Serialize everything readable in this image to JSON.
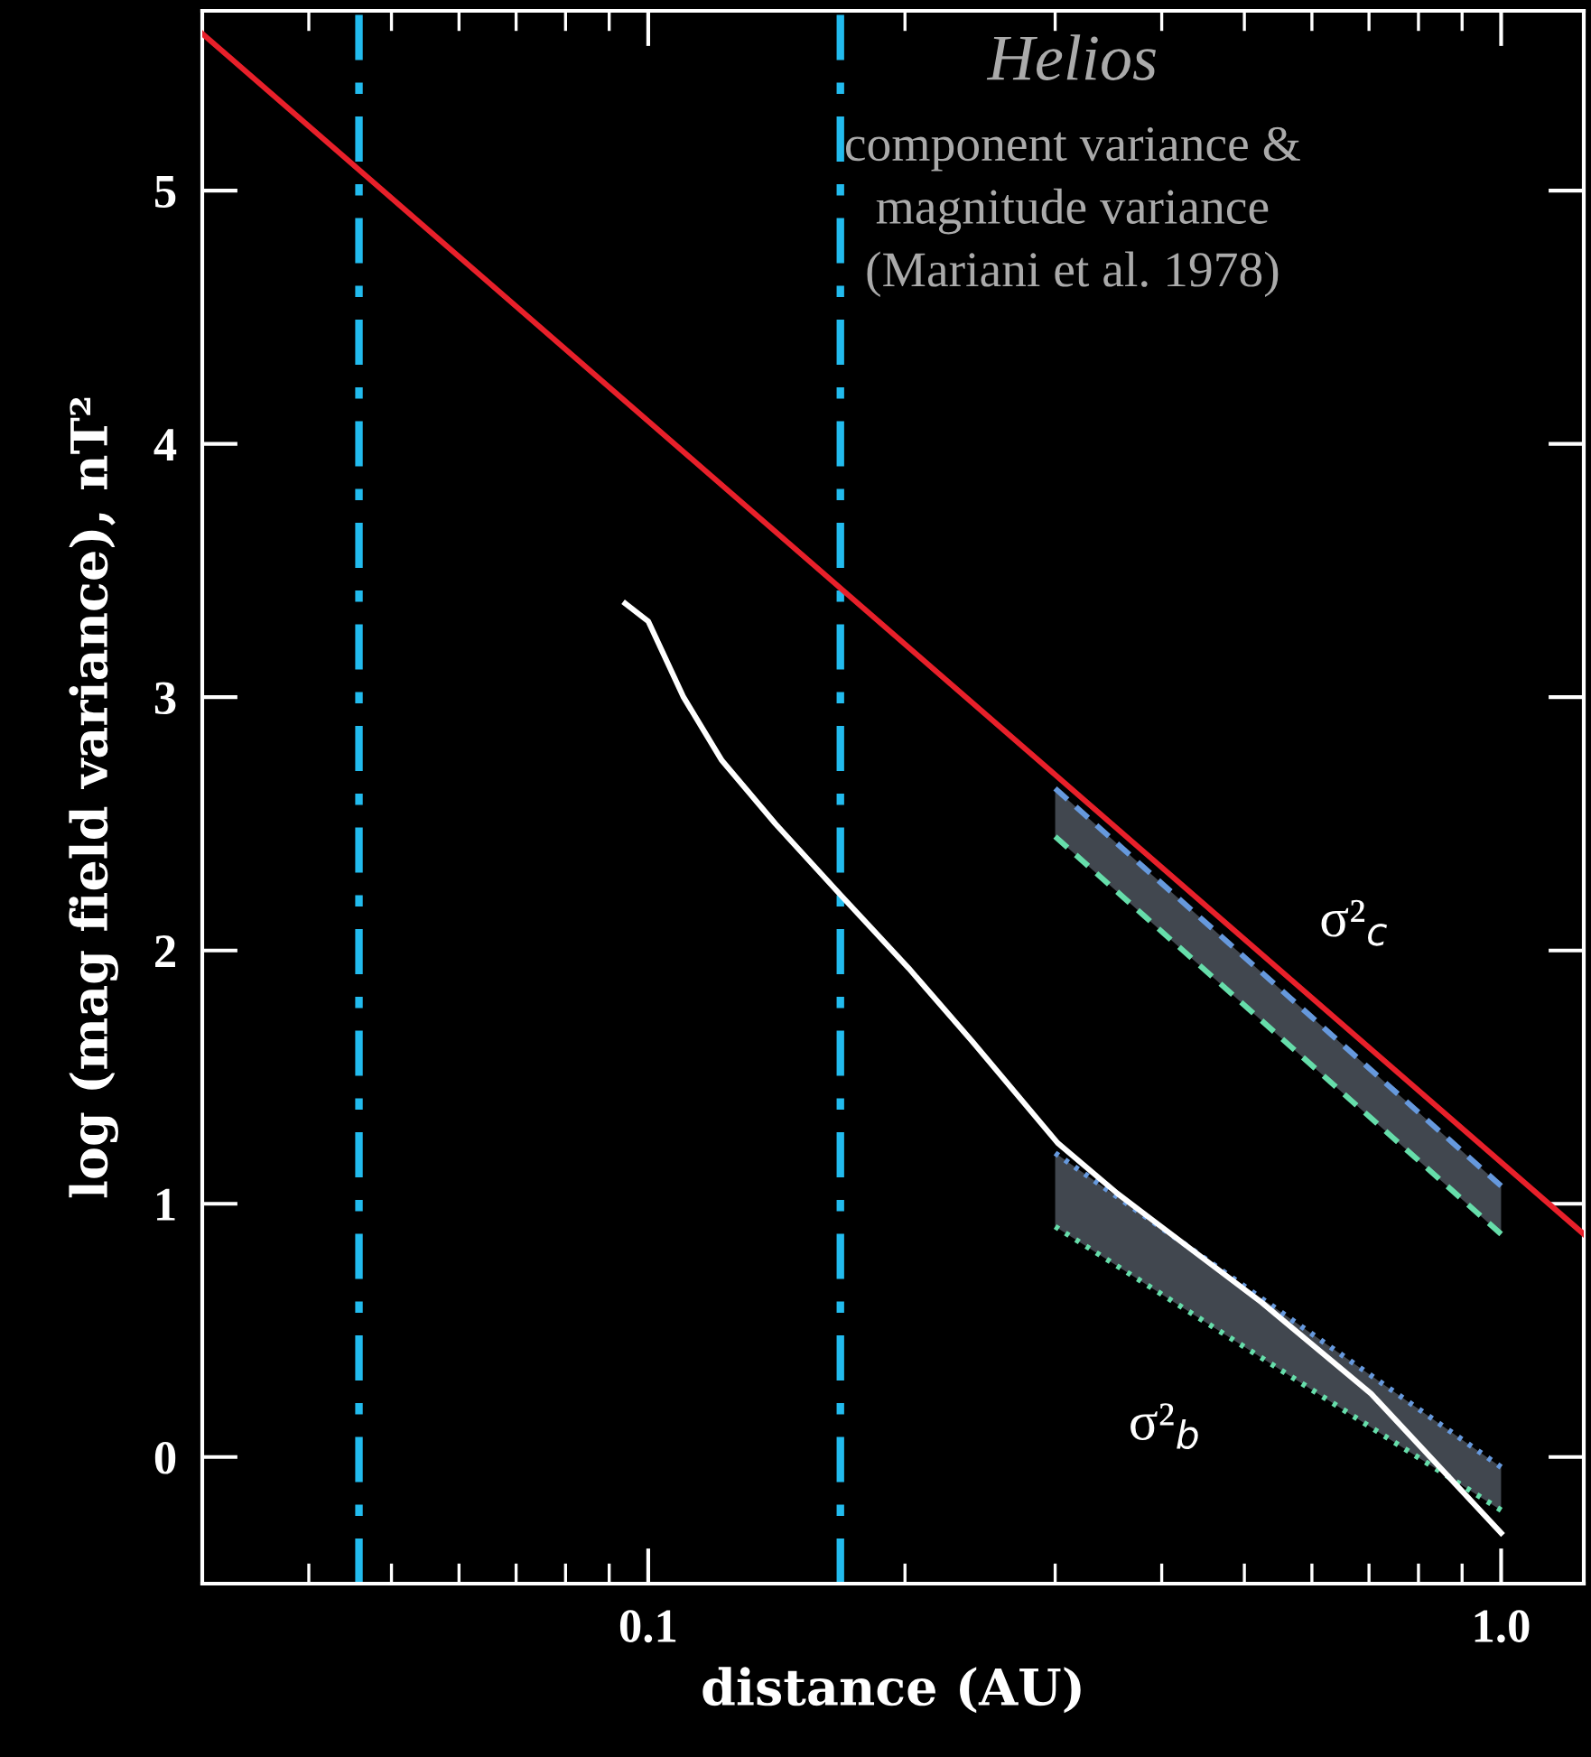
{
  "chart_data": {
    "type": "line",
    "xlabel": "distance (AU)",
    "ylabel": "log (mag field variance), nT²",
    "log": "x",
    "xlim": [
      0.03,
      1.25
    ],
    "ylim": [
      -0.5,
      5.71
    ],
    "xticks": [
      {
        "value": 0.1,
        "label": "0.1"
      },
      {
        "value": 1.0,
        "label": "1.0"
      }
    ],
    "yticks": [
      0,
      1,
      2,
      3,
      4,
      5
    ],
    "grid": false,
    "marker": "none",
    "series": [
      {
        "color": "#6699dd",
        "line_style": "dashed",
        "x": [
          0.3,
          1.0
        ],
        "values": [
          2.64,
          1.07
        ],
        "lower": [
          2.45,
          0.88
        ],
        "upper": [
          2.64,
          1.07
        ]
      },
      {
        "color": "#66ddaa",
        "line_style": "dashed",
        "x": [
          0.3,
          1.0
        ],
        "values": [
          2.45,
          0.88
        ]
      },
      {
        "color": "#6699dd",
        "line_style": "dotted",
        "x": [
          0.3,
          1.0
        ],
        "values": [
          1.2,
          -0.04
        ],
        "lower": [
          0.91,
          -0.21
        ],
        "upper": [
          1.2,
          -0.04
        ]
      },
      {
        "color": "#66ddaa",
        "line_style": "dotted",
        "x": [
          0.3,
          1.0
        ],
        "values": [
          0.91,
          -0.21
        ]
      },
      {
        "color": "#ffffff",
        "line_style": "solid",
        "x": [
          0.094,
          0.1,
          0.11,
          0.122,
          0.141,
          0.168,
          0.202,
          0.24,
          0.302,
          0.355,
          0.524,
          0.704,
          1.0
        ],
        "values": [
          3.37,
          3.3,
          3.0,
          2.75,
          2.5,
          2.22,
          1.93,
          1.64,
          1.24,
          1.04,
          0.61,
          0.25,
          -0.3
        ]
      },
      {
        "color": "#e8202a",
        "line_style": "solid",
        "x": [
          0.03,
          1.25
        ],
        "values": [
          5.62,
          0.88
        ]
      }
    ],
    "ref_lines": [
      {
        "axis": "x",
        "value": 0.0458,
        "color": "#22bbee",
        "line_style": "dashdot"
      },
      {
        "axis": "x",
        "value": 0.168,
        "color": "#22bbee",
        "line_style": "dashdot"
      }
    ],
    "annotations": [
      "Helios",
      "component variance &",
      "magnitude variance",
      "(Mariani et al. 1978)",
      "σ²$_{c}$",
      "σ²$_{b}$"
    ]
  }
}
